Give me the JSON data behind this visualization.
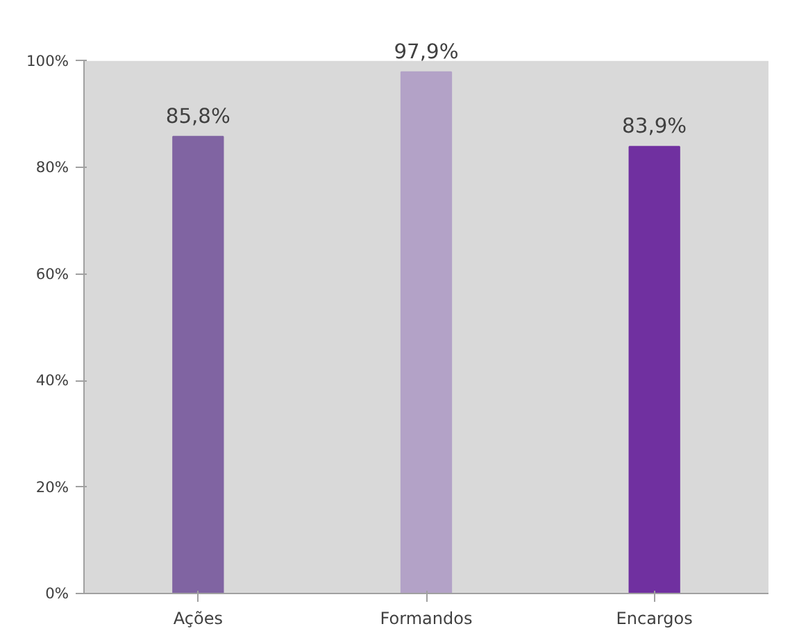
{
  "chart_data": {
    "type": "bar",
    "categories": [
      "Ações",
      "Formandos",
      "Encargos"
    ],
    "values": [
      85.8,
      97.9,
      83.9
    ],
    "colors": [
      "#8064a2",
      "#b3a2c7",
      "#7030a0"
    ],
    "value_labels": [
      "85,8%",
      "97,9%",
      "83,9%"
    ],
    "ylim": [
      0,
      100
    ],
    "yticks": [
      {
        "value": 0,
        "label": "0%"
      },
      {
        "value": 20,
        "label": "20%"
      },
      {
        "value": 40,
        "label": "40%"
      },
      {
        "value": 60,
        "label": "60%"
      },
      {
        "value": 80,
        "label": "80%"
      },
      {
        "value": 100,
        "label": "100%"
      }
    ],
    "grid": false
  }
}
